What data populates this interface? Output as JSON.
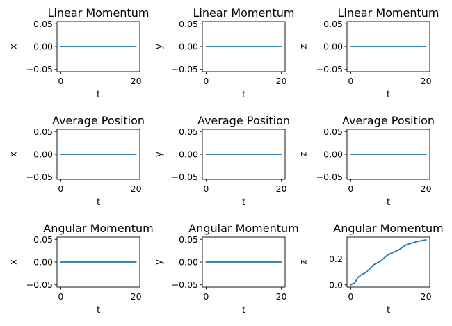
{
  "colors": {
    "series": "#1f77b4",
    "axes": "#000000",
    "background": "#ffffff"
  },
  "chart_data": [
    {
      "type": "line",
      "title": "Linear Momentum",
      "xlabel": "t",
      "ylabel": "x",
      "xlim": [
        -1,
        21
      ],
      "ylim": [
        -0.055,
        0.055
      ],
      "xticks": [
        0,
        20
      ],
      "xtick_labels": [
        "0",
        "20"
      ],
      "yticks": [
        -0.05,
        0.0,
        0.05
      ],
      "ytick_labels": [
        "−0.05",
        "0.00",
        "0.05"
      ],
      "x": [
        0,
        20
      ],
      "y": [
        0,
        0
      ]
    },
    {
      "type": "line",
      "title": "Linear Momentum",
      "xlabel": "t",
      "ylabel": "y",
      "xlim": [
        -1,
        21
      ],
      "ylim": [
        -0.055,
        0.055
      ],
      "xticks": [
        0,
        20
      ],
      "xtick_labels": [
        "0",
        "20"
      ],
      "yticks": [
        -0.05,
        0.0,
        0.05
      ],
      "ytick_labels": [
        "−0.05",
        "0.00",
        "0.05"
      ],
      "x": [
        0,
        20
      ],
      "y": [
        0,
        0
      ]
    },
    {
      "type": "line",
      "title": "Linear Momentum",
      "xlabel": "t",
      "ylabel": "z",
      "xlim": [
        -1,
        21
      ],
      "ylim": [
        -0.055,
        0.055
      ],
      "xticks": [
        0,
        20
      ],
      "xtick_labels": [
        "0",
        "20"
      ],
      "yticks": [
        -0.05,
        0.0,
        0.05
      ],
      "ytick_labels": [
        "−0.05",
        "0.00",
        "0.05"
      ],
      "x": [
        0,
        20
      ],
      "y": [
        0,
        0
      ]
    },
    {
      "type": "line",
      "title": "Average Position",
      "xlabel": "t",
      "ylabel": "x",
      "xlim": [
        -1,
        21
      ],
      "ylim": [
        -0.055,
        0.055
      ],
      "xticks": [
        0,
        20
      ],
      "xtick_labels": [
        "0",
        "20"
      ],
      "yticks": [
        -0.05,
        0.0,
        0.05
      ],
      "ytick_labels": [
        "−0.05",
        "0.00",
        "0.05"
      ],
      "x": [
        0,
        20
      ],
      "y": [
        0,
        0
      ]
    },
    {
      "type": "line",
      "title": "Average Position",
      "xlabel": "t",
      "ylabel": "y",
      "xlim": [
        -1,
        21
      ],
      "ylim": [
        -0.055,
        0.055
      ],
      "xticks": [
        0,
        20
      ],
      "xtick_labels": [
        "0",
        "20"
      ],
      "yticks": [
        -0.05,
        0.0,
        0.05
      ],
      "ytick_labels": [
        "−0.05",
        "0.00",
        "0.05"
      ],
      "x": [
        0,
        20
      ],
      "y": [
        0,
        0
      ]
    },
    {
      "type": "line",
      "title": "Average Position",
      "xlabel": "t",
      "ylabel": "z",
      "xlim": [
        -1,
        21
      ],
      "ylim": [
        -0.055,
        0.055
      ],
      "xticks": [
        0,
        20
      ],
      "xtick_labels": [
        "0",
        "20"
      ],
      "yticks": [
        -0.05,
        0.0,
        0.05
      ],
      "ytick_labels": [
        "−0.05",
        "0.00",
        "0.05"
      ],
      "x": [
        0,
        20
      ],
      "y": [
        0,
        0
      ]
    },
    {
      "type": "line",
      "title": "Angular Momentum",
      "xlabel": "t",
      "ylabel": "x",
      "xlim": [
        -1,
        21
      ],
      "ylim": [
        -0.055,
        0.055
      ],
      "xticks": [
        0,
        20
      ],
      "xtick_labels": [
        "0",
        "20"
      ],
      "yticks": [
        -0.05,
        0.0,
        0.05
      ],
      "ytick_labels": [
        "−0.05",
        "0.00",
        "0.05"
      ],
      "x": [
        0,
        20
      ],
      "y": [
        0,
        0
      ]
    },
    {
      "type": "line",
      "title": "Angular Momentum",
      "xlabel": "t",
      "ylabel": "y",
      "xlim": [
        -1,
        21
      ],
      "ylim": [
        -0.055,
        0.055
      ],
      "xticks": [
        0,
        20
      ],
      "xtick_labels": [
        "0",
        "20"
      ],
      "yticks": [
        -0.05,
        0.0,
        0.05
      ],
      "ytick_labels": [
        "−0.05",
        "0.00",
        "0.05"
      ],
      "x": [
        0,
        20
      ],
      "y": [
        0,
        0
      ]
    },
    {
      "type": "line",
      "title": "Angular Momentum",
      "xlabel": "t",
      "ylabel": "z",
      "xlim": [
        -1,
        21
      ],
      "ylim": [
        -0.017,
        0.367
      ],
      "xticks": [
        0,
        20
      ],
      "xtick_labels": [
        "0",
        "20"
      ],
      "yticks": [
        0.0,
        0.2
      ],
      "ytick_labels": [
        "0.0",
        "0.2"
      ],
      "x": [
        0,
        1,
        2,
        3,
        4,
        5,
        6,
        7,
        8,
        9,
        10,
        11,
        12,
        13,
        14,
        15,
        16,
        17,
        18,
        19,
        20
      ],
      "y": [
        0.0,
        0.015,
        0.06,
        0.08,
        0.095,
        0.12,
        0.153,
        0.168,
        0.183,
        0.21,
        0.233,
        0.245,
        0.258,
        0.273,
        0.295,
        0.31,
        0.318,
        0.328,
        0.335,
        0.34,
        0.346
      ]
    }
  ]
}
